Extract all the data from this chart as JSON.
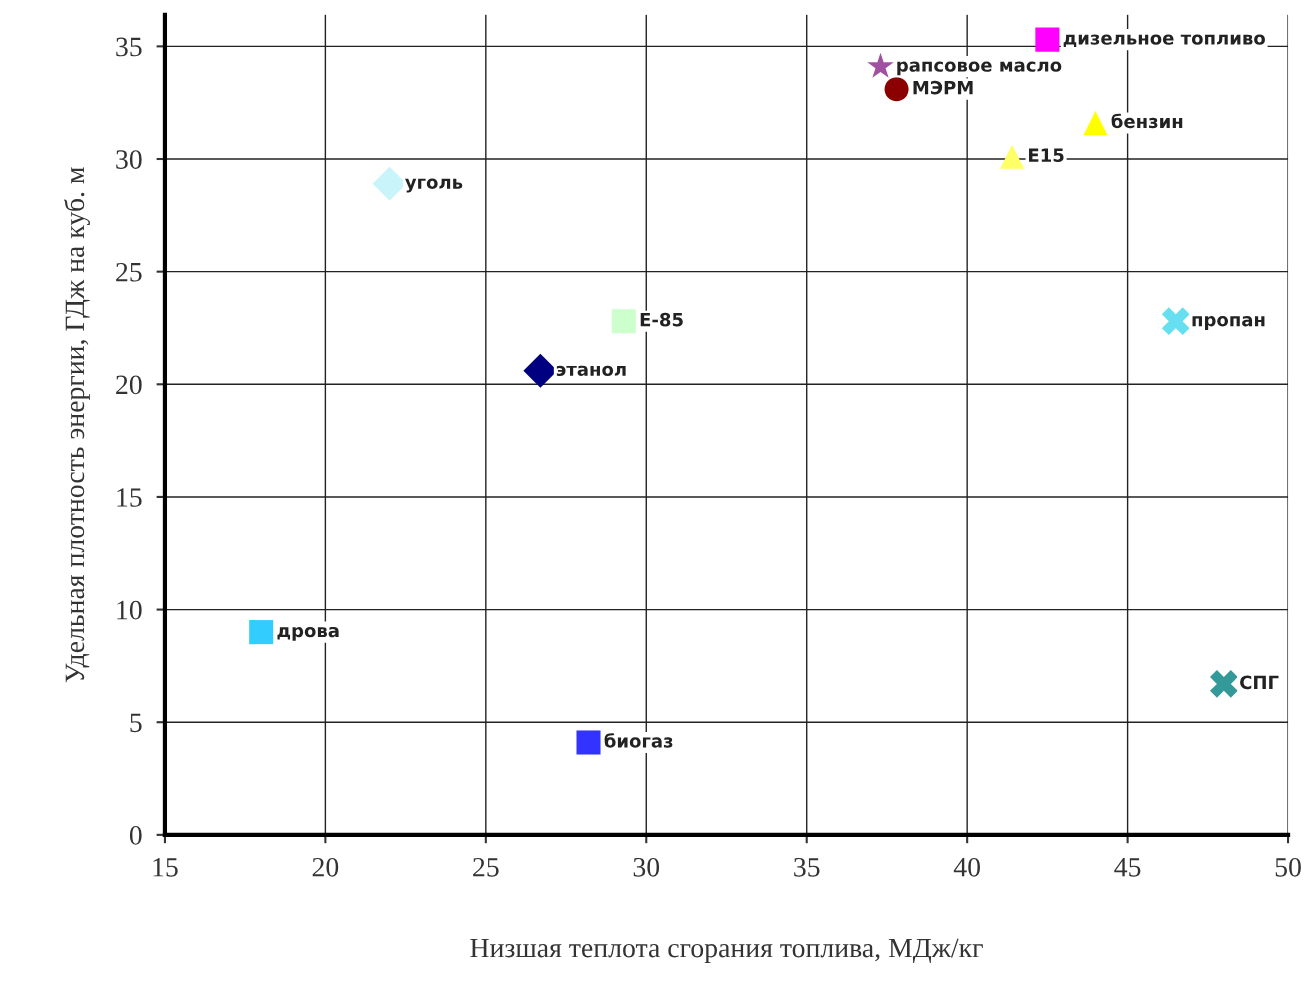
{
  "chart_data": {
    "type": "scatter",
    "xlabel": "Низшая теплота сгорания топлива, МДж/кг",
    "ylabel": "Удельная плотность энергии, ГДж на куб. м",
    "xlim": [
      15,
      50
    ],
    "ylim": [
      0,
      36.4
    ],
    "xticks": [
      15,
      20,
      25,
      30,
      35,
      40,
      45,
      50
    ],
    "yticks": [
      0,
      5,
      10,
      15,
      20,
      25,
      30,
      35
    ],
    "grid": true,
    "legend": false,
    "series": [
      {
        "name": "дизельное топливо",
        "color": "#ff00ff",
        "marker": "square",
        "x": [
          42.5
        ],
        "values": [
          35.3
        ]
      },
      {
        "name": "рапсовое масло",
        "color": "#a050a0",
        "marker": "star",
        "x": [
          37.3
        ],
        "values": [
          34.1
        ]
      },
      {
        "name": "МЭРМ",
        "color": "#8b0000",
        "marker": "circle",
        "x": [
          37.8
        ],
        "values": [
          33.1
        ]
      },
      {
        "name": "бензин",
        "color": "#ffff00",
        "marker": "triangle",
        "x": [
          44.0
        ],
        "values": [
          31.6
        ]
      },
      {
        "name": "E15",
        "color": "#ffff66",
        "marker": "triangle",
        "x": [
          41.4
        ],
        "values": [
          30.1
        ]
      },
      {
        "name": "уголь",
        "color": "#c8f4fa",
        "marker": "diamond",
        "x": [
          22.0
        ],
        "values": [
          28.9
        ]
      },
      {
        "name": "E-85",
        "color": "#ccffcc",
        "marker": "square",
        "x": [
          29.3
        ],
        "values": [
          22.8
        ]
      },
      {
        "name": "этанол",
        "color": "#000080",
        "marker": "diamond",
        "x": [
          26.7
        ],
        "values": [
          20.6
        ]
      },
      {
        "name": "пропан",
        "color": "#66e0f0",
        "marker": "cross",
        "x": [
          46.5
        ],
        "values": [
          22.8
        ]
      },
      {
        "name": "дрова",
        "color": "#33ccff",
        "marker": "square",
        "x": [
          18.0
        ],
        "values": [
          9.0
        ]
      },
      {
        "name": "СПГ",
        "color": "#339999",
        "marker": "cross",
        "x": [
          48.0
        ],
        "values": [
          6.7
        ]
      },
      {
        "name": "биогаз",
        "color": "#3333ff",
        "marker": "square",
        "x": [
          28.2
        ],
        "values": [
          4.1
        ]
      }
    ]
  }
}
